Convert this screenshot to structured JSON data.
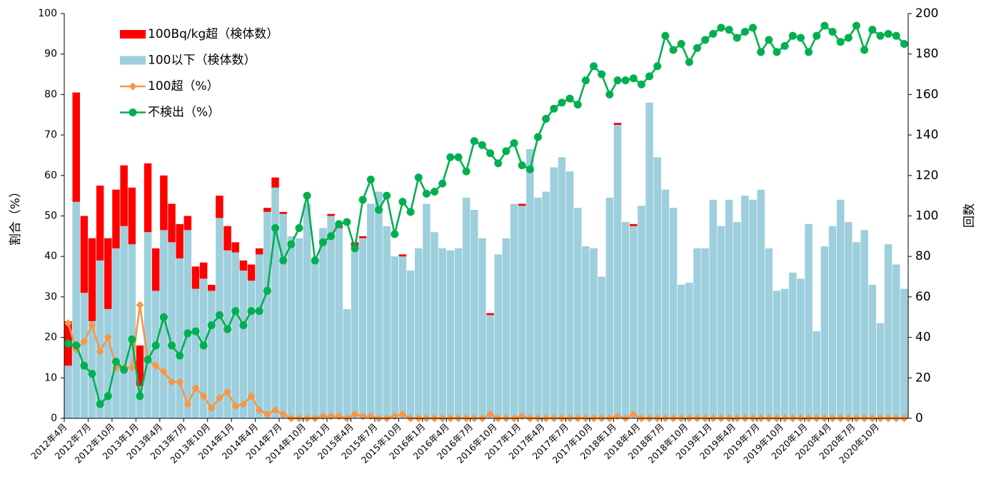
{
  "chart_data": {
    "type": "bar",
    "y_label": "割合（%）",
    "y2_label": "回数",
    "categories": [
      "2012年4月",
      null,
      null,
      "2012年7月",
      null,
      null,
      "2012年10月",
      null,
      null,
      "2013年1月",
      null,
      null,
      "2013年4月",
      null,
      null,
      "2013年7月",
      null,
      null,
      "2013年10月",
      null,
      null,
      "2014年1月",
      null,
      null,
      "2014年4月",
      null,
      null,
      "2014年7月",
      null,
      null,
      "2014年10月",
      null,
      null,
      "2015年1月",
      null,
      null,
      "2015年4月",
      null,
      null,
      "2015年7月",
      null,
      null,
      "2015年10月",
      null,
      null,
      "2016年1月",
      null,
      null,
      "2016年4月",
      null,
      null,
      "2016年7月",
      null,
      null,
      "2016年10月",
      null,
      null,
      "2017年1月",
      null,
      null,
      "2017年4月",
      null,
      null,
      "2017年7月",
      null,
      null,
      "2017年10月",
      null,
      null,
      "2018年1月",
      null,
      null,
      "2018年4月",
      null,
      null,
      "2018年7月",
      null,
      null,
      "2018年10月",
      null,
      null,
      "2019年1月",
      null,
      null,
      "2019年4月",
      null,
      null,
      "2019年7月",
      null,
      null,
      "2019年10月",
      null,
      null,
      "2020年1月",
      null,
      null,
      "2020年4月",
      null,
      null,
      "2020年7月",
      null,
      null,
      "2020年10月",
      null,
      null,
      null
    ],
    "series": [
      {
        "name": "100Bq/kg超（検体数）",
        "type": "bar",
        "axis": "y2",
        "color": "#ff0000",
        "values": [
          22,
          54,
          38,
          41,
          37,
          35,
          29,
          30,
          28,
          20,
          34,
          21,
          27,
          19,
          17,
          7,
          11,
          8,
          3,
          11,
          12,
          5,
          5,
          8,
          3,
          2,
          5,
          1,
          0,
          0,
          0,
          0,
          0,
          1,
          1,
          0,
          2,
          1,
          0,
          0,
          0,
          0,
          1,
          0,
          0,
          0,
          0,
          0,
          0,
          0,
          0,
          0,
          0,
          1,
          0,
          0,
          0,
          1,
          0,
          0,
          0,
          0,
          0,
          0,
          0,
          0,
          0,
          0,
          0,
          1,
          0,
          1,
          0,
          0,
          0,
          0,
          0,
          0,
          0,
          0,
          0,
          0,
          0,
          0,
          0,
          0,
          0,
          0,
          0,
          0,
          0,
          0,
          0,
          0,
          0,
          0,
          0,
          0,
          0,
          0,
          0,
          0,
          0,
          0,
          0,
          0
        ]
      },
      {
        "name": "100以下（検体数）",
        "type": "bar",
        "axis": "y2",
        "color": "#9dcfdd",
        "values": [
          26,
          107,
          62,
          48,
          78,
          54,
          84,
          95,
          86,
          16,
          92,
          63,
          93,
          87,
          79,
          93,
          64,
          69,
          63,
          99,
          83,
          82,
          73,
          68,
          81,
          102,
          114,
          101,
          90,
          89,
          106,
          78,
          94,
          100,
          94,
          54,
          85,
          89,
          106,
          112,
          95,
          80,
          80,
          73,
          84,
          106,
          92,
          84,
          83,
          84,
          109,
          103,
          89,
          51,
          81,
          89,
          106,
          105,
          133,
          109,
          112,
          124,
          129,
          122,
          104,
          85,
          84,
          70,
          109,
          145,
          97,
          95,
          105,
          156,
          129,
          113,
          104,
          66,
          67,
          84,
          84,
          108,
          95,
          108,
          97,
          110,
          108,
          113,
          84,
          63,
          64,
          72,
          69,
          96,
          43,
          85,
          95,
          108,
          97,
          87,
          93,
          66,
          47,
          86,
          76,
          64
        ]
      },
      {
        "name": "100超（%）",
        "type": "line",
        "marker": "diamond",
        "color": "#f79646",
        "values": [
          23.5,
          17,
          19,
          23,
          16.5,
          20,
          12.5,
          12.5,
          12.5,
          28,
          14.5,
          13,
          11.5,
          9,
          9,
          3.5,
          7.5,
          5.5,
          2.5,
          5,
          6.5,
          3,
          3.5,
          5.5,
          2,
          1,
          2,
          1,
          0,
          0,
          0,
          0,
          0.5,
          0.5,
          0.5,
          0,
          1,
          0.5,
          0.5,
          0,
          0,
          0.5,
          1,
          0,
          0,
          0,
          0,
          0,
          0,
          0,
          0,
          0,
          0,
          1,
          0,
          0,
          0,
          0.5,
          0,
          0,
          0,
          0,
          0,
          0,
          0,
          0,
          0,
          0,
          0,
          0.5,
          0,
          1,
          0,
          0,
          0,
          0,
          0,
          0,
          0,
          0,
          0,
          0,
          0,
          0,
          0,
          0,
          0,
          0,
          0,
          0,
          0,
          0,
          0,
          0,
          0,
          0,
          0,
          0,
          0,
          0,
          0,
          0,
          0,
          0,
          0,
          0
        ]
      },
      {
        "name": "不検出（%）",
        "type": "line",
        "marker": "circle",
        "color": "#00b050",
        "values": [
          18.5,
          18,
          13,
          11,
          3.5,
          5.5,
          14,
          12,
          19.5,
          5.5,
          14.5,
          18,
          25,
          18,
          15.5,
          21,
          21.5,
          18,
          23,
          25.5,
          22,
          26.5,
          23,
          26.5,
          26.5,
          31.5,
          47,
          39,
          43,
          47,
          55,
          39,
          43.5,
          45,
          48,
          48.5,
          42,
          54,
          59,
          51.5,
          55,
          45.5,
          53.5,
          51,
          59.5,
          55.5,
          56,
          58,
          64.5,
          64.5,
          61,
          68.5,
          67.5,
          65.5,
          63,
          66,
          68,
          62.5,
          61.5,
          69.5,
          74,
          76.5,
          78,
          79,
          77.5,
          83.5,
          87,
          85,
          80,
          83.5,
          83.5,
          84,
          82.5,
          84.5,
          87,
          94.5,
          91,
          92.5,
          88,
          91.5,
          93.5,
          95,
          96.5,
          96,
          94,
          95.5,
          96.5,
          90.5,
          93.5,
          90.5,
          92,
          94.5,
          94,
          90.5,
          94.5,
          97,
          95.5,
          93,
          94,
          97,
          91,
          96,
          94.5,
          95,
          94.5,
          92.5
        ]
      }
    ],
    "ylim": [
      0,
      100
    ],
    "yticks": [
      0,
      10,
      20,
      30,
      40,
      50,
      60,
      70,
      80,
      90,
      100
    ],
    "y2lim": [
      0,
      200
    ],
    "y2ticks": [
      0,
      20,
      40,
      60,
      80,
      100,
      120,
      140,
      160,
      180,
      200
    ],
    "legend": "upper left"
  }
}
